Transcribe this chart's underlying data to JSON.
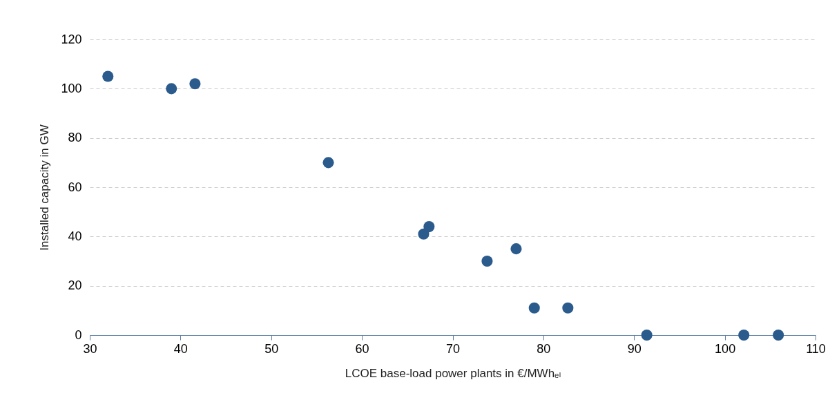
{
  "chart_data": {
    "type": "scatter",
    "xlabel": "LCOE base-load power plants in €/MWhₑₗ",
    "ylabel": "Installed capacity in GW",
    "x": [
      32.0,
      39.0,
      41.6,
      56.3,
      66.8,
      67.4,
      73.8,
      77.0,
      79.0,
      82.7,
      91.4,
      102.1,
      105.9
    ],
    "series": [
      {
        "color": "#2b5b8c",
        "values": [
          105,
          100,
          102,
          70,
          41,
          44,
          30,
          35,
          11,
          11,
          0,
          0,
          0
        ]
      }
    ],
    "xlim": [
      30,
      110
    ],
    "xticks": [
      30,
      40,
      50,
      60,
      70,
      80,
      90,
      100,
      110
    ],
    "ylim": [
      0,
      120
    ],
    "yticks": [
      0,
      20,
      40,
      60,
      80,
      100,
      120
    ],
    "grid": "y",
    "marker": "circle",
    "legend": false
  }
}
